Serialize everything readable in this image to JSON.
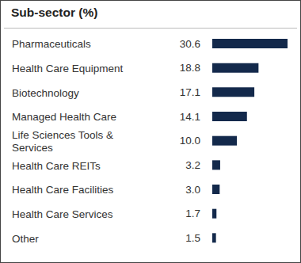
{
  "chart_data": {
    "type": "bar",
    "title": "Sub-sector (%)",
    "orientation": "horizontal",
    "categories": [
      "Pharmaceuticals",
      "Health Care Equipment",
      "Biotechnology",
      "Managed Health Care",
      "Life Sciences Tools & Services",
      "Health Care REITs",
      "Health Care Facilities",
      "Health Care Services",
      "Other"
    ],
    "values": [
      30.6,
      18.8,
      17.1,
      14.1,
      10.0,
      3.2,
      3.0,
      1.7,
      1.5
    ],
    "value_labels": [
      "30.6",
      "18.8",
      "17.1",
      "14.1",
      "10.0",
      "3.2",
      "3.0",
      "1.7",
      "1.5"
    ],
    "data_labels": true,
    "tick_labels": "y",
    "color": "#13294b",
    "xlim": [
      0,
      30.6
    ]
  }
}
